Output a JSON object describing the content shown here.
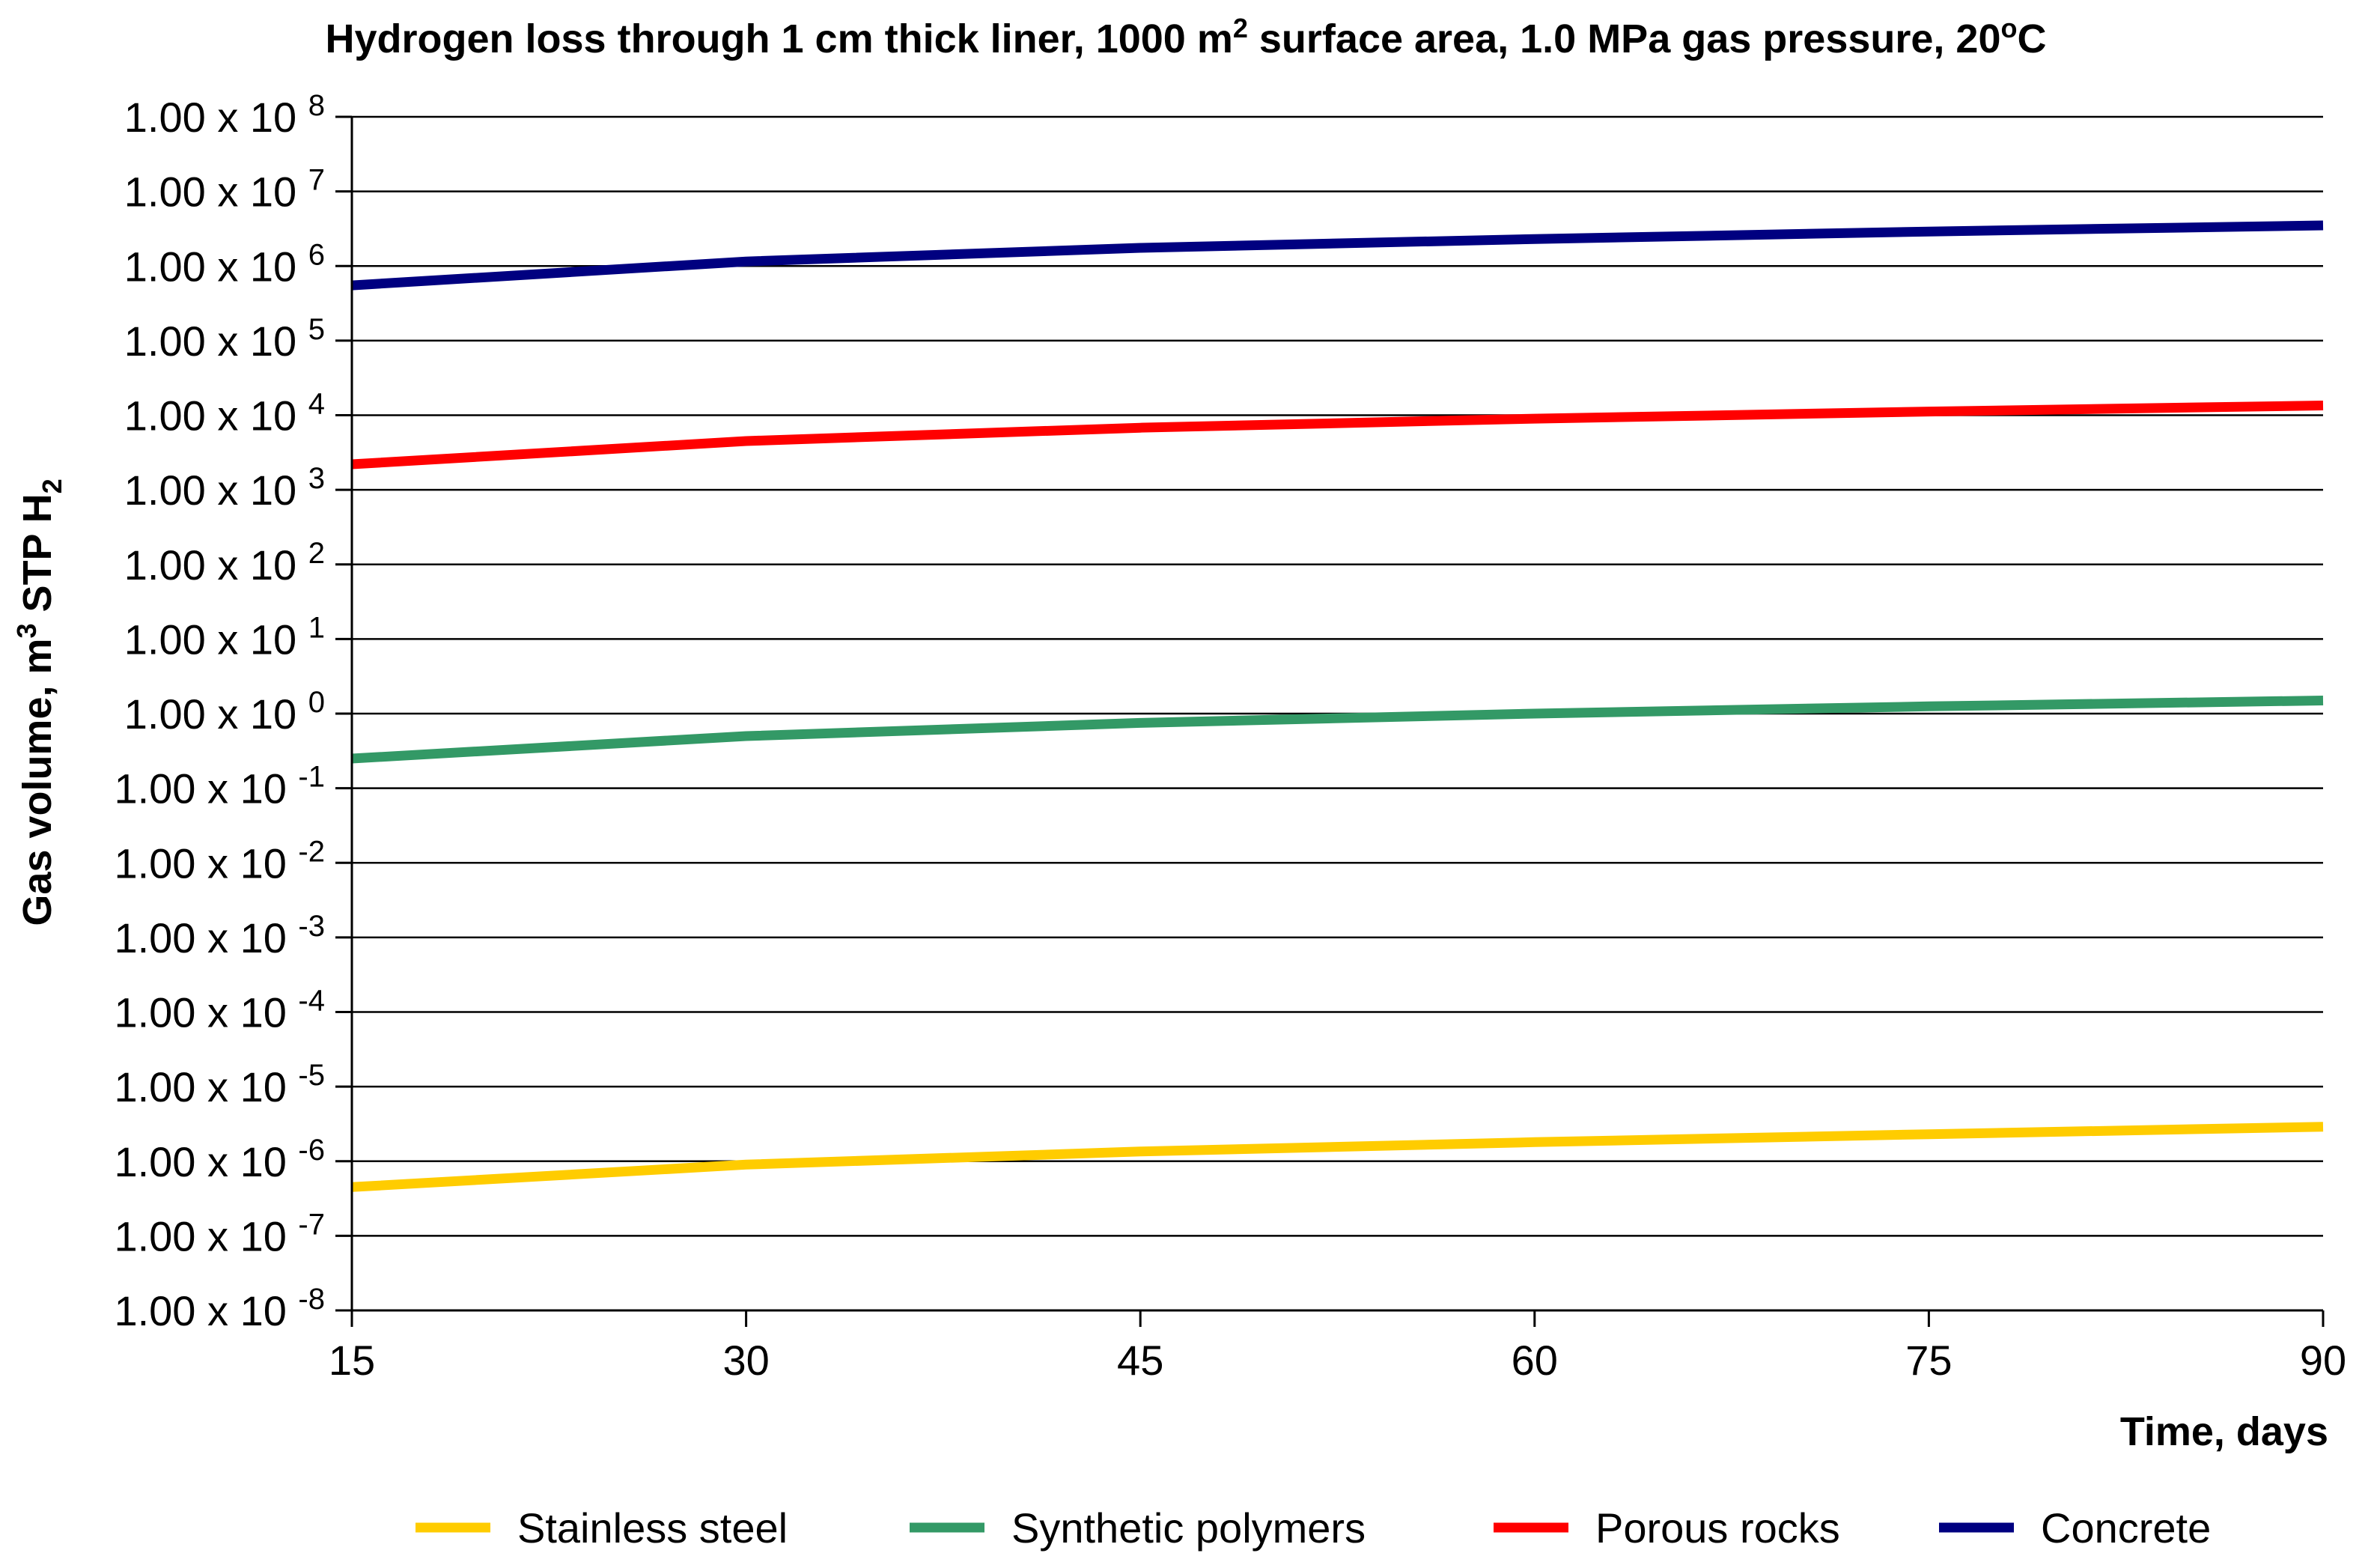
{
  "chart_data": {
    "type": "line",
    "title": "Hydrogen loss through 1 cm thick liner, 1000 m2 surface area, 1.0 MPa gas pressure, 20 oC",
    "title_parts": {
      "p1": "Hydrogen loss through 1 cm thick liner, 1000 m",
      "sup1": "2",
      "p2": " surface area, 1.0 MPa gas pressure, 20",
      "sup2": "o",
      "p3": "C"
    },
    "xlabel": "Time, days",
    "ylabel": "Gas volume,  m3 STP H2",
    "ylabel_parts": {
      "p1": "Gas volume,  m",
      "sup": "3",
      "p2": " STP H",
      "sub": "2"
    },
    "x_ticks": [
      15,
      30,
      45,
      60,
      75,
      90
    ],
    "xlim": [
      15,
      90
    ],
    "y_scale": "log",
    "ylim": [
      1e-08,
      100000000.0
    ],
    "y_ticks": [
      {
        "mantissa": "1.00 x 10",
        "exponent": "8"
      },
      {
        "mantissa": "1.00 x 10",
        "exponent": "7"
      },
      {
        "mantissa": "1.00 x 10",
        "exponent": "6"
      },
      {
        "mantissa": "1.00 x 10",
        "exponent": "5"
      },
      {
        "mantissa": "1.00 x 10",
        "exponent": "4"
      },
      {
        "mantissa": "1.00 x 10",
        "exponent": "3"
      },
      {
        "mantissa": "1.00 x 10",
        "exponent": "2"
      },
      {
        "mantissa": "1.00 x 10",
        "exponent": "1"
      },
      {
        "mantissa": "1.00 x 10",
        "exponent": "0"
      },
      {
        "mantissa": "1.00 x 10",
        "exponent": "-1"
      },
      {
        "mantissa": "1.00 x 10",
        "exponent": "-2"
      },
      {
        "mantissa": "1.00 x 10",
        "exponent": "-3"
      },
      {
        "mantissa": "1.00 x 10",
        "exponent": "-4"
      },
      {
        "mantissa": "1.00 x 10",
        "exponent": "-5"
      },
      {
        "mantissa": "1.00 x 10",
        "exponent": "-6"
      },
      {
        "mantissa": "1.00 x 10",
        "exponent": "-7"
      },
      {
        "mantissa": "1.00 x 10",
        "exponent": "-8"
      }
    ],
    "grid": true,
    "legend_position": "bottom",
    "x": [
      15,
      30,
      45,
      60,
      75,
      90
    ],
    "series": [
      {
        "name": "Stainless steel",
        "color": "#FFCC00",
        "values": [
          4.5e-07,
          9e-07,
          1.35e-06,
          1.8e-06,
          2.3e-06,
          2.9e-06
        ]
      },
      {
        "name": "Synthetic polymers",
        "color": "#339966",
        "values": [
          0.25,
          0.5,
          0.75,
          1.0,
          1.25,
          1.5
        ]
      },
      {
        "name": "Porous rocks",
        "color": "#FF0000",
        "values": [
          2200,
          4500,
          6800,
          9000,
          11200,
          13500
        ]
      },
      {
        "name": "Concrete",
        "color": "#000080",
        "values": [
          550000,
          1150000,
          1750000,
          2300000,
          2900000,
          3500000
        ]
      }
    ]
  }
}
